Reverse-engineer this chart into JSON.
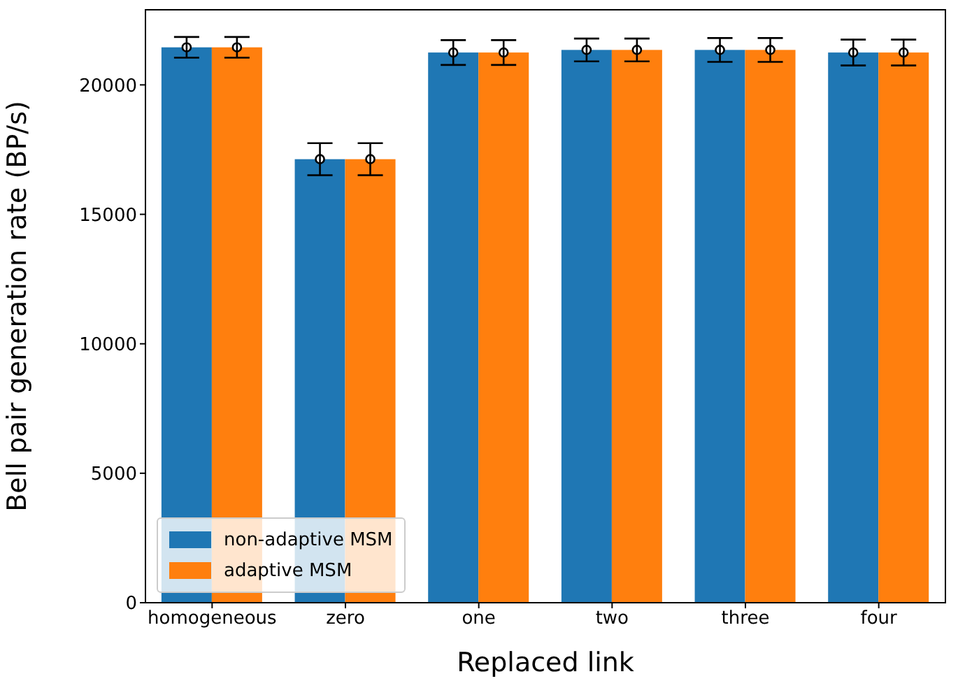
{
  "chart_data": {
    "type": "bar",
    "xlabel": "Replaced link",
    "ylabel": "Bell pair generation rate (BP/s)",
    "categories": [
      "homogeneous",
      "zero",
      "one",
      "two",
      "three",
      "four"
    ],
    "series": [
      {
        "name": "non-adaptive MSM",
        "color": "#1f77b4",
        "values": [
          21450,
          17130,
          21250,
          21350,
          21350,
          21250
        ]
      },
      {
        "name": "adaptive MSM",
        "color": "#ff7f0e",
        "values": [
          21450,
          17130,
          21250,
          21350,
          21350,
          21250
        ]
      },
      {
        "type": "scatter",
        "color": "#ffffff",
        "marker": "circle",
        "x": [
          "homogeneous",
          "zero",
          "one",
          "two",
          "three",
          "four"
        ],
        "values": [
          21450,
          17130,
          21250,
          21350,
          21350,
          21250
        ],
        "errors": [
          400,
          620,
          480,
          440,
          460,
          500
        ]
      },
      {
        "type": "scatter",
        "color": "#ffffff",
        "marker": "circle",
        "x": [
          "homogeneous",
          "zero",
          "one",
          "two",
          "three",
          "four"
        ],
        "values": [
          21450,
          17130,
          21250,
          21350,
          21350,
          21250
        ],
        "errors": [
          400,
          620,
          480,
          440,
          460,
          500
        ]
      }
    ],
    "ylim": [
      0,
      22900
    ],
    "yticks": [
      0,
      5000,
      10000,
      15000,
      20000
    ],
    "grid": false,
    "legend": "bottom left"
  }
}
